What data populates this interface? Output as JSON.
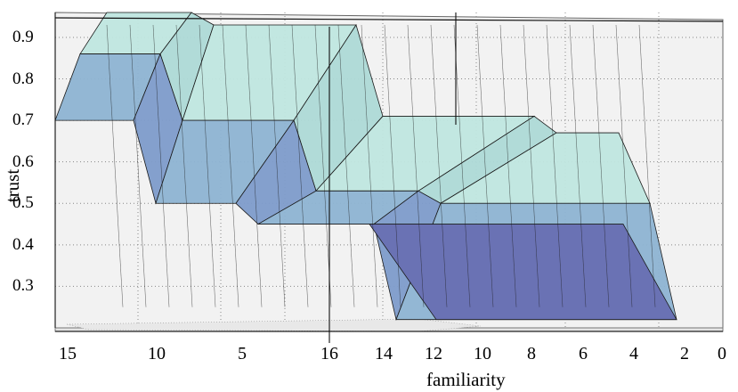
{
  "chart_data": {
    "type": "surface",
    "title": "",
    "xlabel": "familiarity",
    "ylabel": "trust",
    "ylim": [
      0.2,
      0.96
    ],
    "y_ticks": [
      "0.3",
      "0.4",
      "0.5",
      "0.6",
      "0.7",
      "0.8",
      "0.9"
    ],
    "x_ticks": [
      "15",
      "10",
      "5",
      "16",
      "14",
      "12",
      "10",
      "8",
      "6",
      "4",
      "2",
      "0"
    ],
    "grid": true,
    "colors": {
      "plane": "#f2f2f2",
      "grid": "#888888",
      "surface_top": "#bfe6e0",
      "surface_mid": "#8fb4d2",
      "surface_low": "#6a72b4",
      "mesh": "#1a1a1a"
    },
    "surface_rows": [
      {
        "row": "back",
        "levels": [
          0.96,
          0.96,
          0.93,
          0.93,
          0.71,
          0.71,
          0.67,
          0.67
        ]
      },
      {
        "row": "middle",
        "levels": [
          0.86,
          0.86,
          0.7,
          0.7,
          0.53,
          0.53,
          0.5,
          0.5
        ]
      },
      {
        "row": "front",
        "levels": [
          0.7,
          0.7,
          0.5,
          0.5,
          0.45,
          0.45,
          0.22,
          0.22
        ]
      }
    ]
  }
}
